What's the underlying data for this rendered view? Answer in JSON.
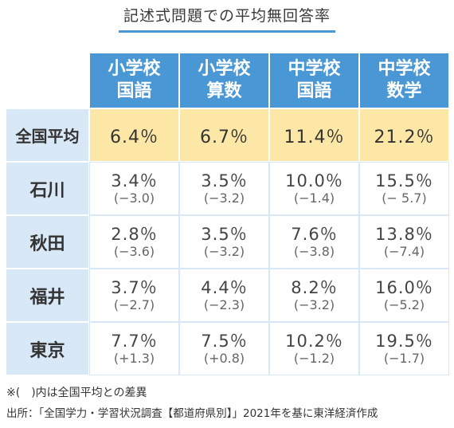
{
  "title": "記述式問題での平均無回答率",
  "columns": [
    {
      "line1": "小学校",
      "line2": "国語"
    },
    {
      "line1": "小学校",
      "line2": "算数"
    },
    {
      "line1": "中学校",
      "line2": "国語"
    },
    {
      "line1": "中学校",
      "line2": "数学"
    }
  ],
  "average_row": {
    "label": "全国平均",
    "values": [
      "6.4％",
      "6.7％",
      "11.4％",
      "21.2％"
    ]
  },
  "rows": [
    {
      "label": "石川",
      "values": [
        "3.4％",
        "3.5％",
        "10.0％",
        "15.5％"
      ],
      "diffs": [
        "(−3.0)",
        "(−3.2)",
        "(−1.4)",
        "(− 5.7)"
      ]
    },
    {
      "label": "秋田",
      "values": [
        "2.8％",
        "3.5％",
        "7.6％",
        "13.8％"
      ],
      "diffs": [
        "(−3.6)",
        "(−3.2)",
        "(−3.8)",
        "(−7.4)"
      ]
    },
    {
      "label": "福井",
      "values": [
        "3.7％",
        "4.4％",
        "8.2％",
        "16.0％"
      ],
      "diffs": [
        "(−2.7)",
        "(−2.3)",
        "(−3.2)",
        "(−5.2)"
      ]
    },
    {
      "label": "東京",
      "values": [
        "7.7％",
        "7.5％",
        "10.2％",
        "19.5％"
      ],
      "diffs": [
        "(+1.3)",
        "(+0.8)",
        "(−1.2)",
        "(−1.7)"
      ]
    }
  ],
  "note": "※(　)内は全国平均との差異",
  "source": "出所：「全国学力・学習状況調査【都道府県別】」2021年を基に東洋経済作成",
  "colors": {
    "header": "#4a97d6",
    "row_header": "#d9e8f6",
    "average_row": "#fde7a6"
  },
  "chart_data": {
    "type": "table",
    "title": "記述式問題での平均無回答率",
    "columns": [
      "小学校 国語",
      "小学校 算数",
      "中学校 国語",
      "中学校 数学"
    ],
    "rows": [
      {
        "label": "全国平均",
        "values": [
          6.4,
          6.7,
          11.4,
          21.2
        ]
      },
      {
        "label": "石川",
        "values": [
          3.4,
          3.5,
          10.0,
          15.5
        ],
        "diffs": [
          -3.0,
          -3.2,
          -1.4,
          -5.7
        ]
      },
      {
        "label": "秋田",
        "values": [
          2.8,
          3.5,
          7.6,
          13.8
        ],
        "diffs": [
          -3.6,
          -3.2,
          -3.8,
          -7.4
        ]
      },
      {
        "label": "福井",
        "values": [
          3.7,
          4.4,
          8.2,
          16.0
        ],
        "diffs": [
          -2.7,
          -2.3,
          -3.2,
          -5.2
        ]
      },
      {
        "label": "東京",
        "values": [
          7.7,
          7.5,
          10.2,
          19.5
        ],
        "diffs": [
          1.3,
          0.8,
          -1.2,
          -1.7
        ]
      }
    ]
  }
}
